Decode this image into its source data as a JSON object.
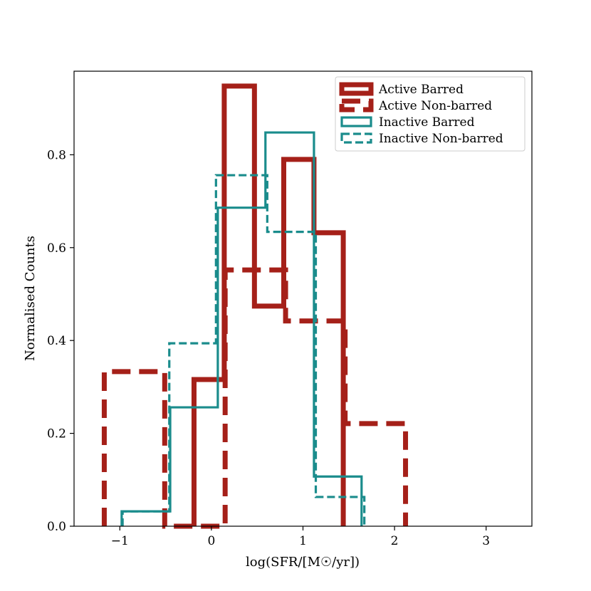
{
  "chart_data": {
    "type": "histogram",
    "title": "",
    "xlabel": "log(SFR/[M☉/yr])",
    "ylabel": "Normalised Counts",
    "xlim": [
      -1.5,
      3.5
    ],
    "ylim": [
      0.0,
      0.98
    ],
    "xticks": [
      -1,
      0,
      1,
      2,
      3
    ],
    "xtick_labels": [
      "−1",
      "0",
      "1",
      "2",
      "3"
    ],
    "yticks": [
      0.0,
      0.2,
      0.4,
      0.6,
      0.8
    ],
    "ytick_labels": [
      "0.0",
      "0.2",
      "0.4",
      "0.6",
      "0.8"
    ],
    "legend_position": "top-right",
    "series": [
      {
        "name": "Active Barred",
        "color": "#a52019",
        "linestyle": "solid",
        "linewidth": "thick",
        "bin_edges": [
          -0.19,
          0.14,
          0.47,
          0.79,
          1.12,
          1.44
        ],
        "values": [
          0.316,
          0.948,
          0.474,
          0.79,
          0.632
        ]
      },
      {
        "name": "Active Non-barred",
        "color": "#a52019",
        "linestyle": "dashed",
        "linewidth": "thick",
        "bin_edges": [
          -1.17,
          -0.51,
          0.15,
          0.81,
          1.46,
          2.12
        ],
        "values": [
          0.333,
          0.0,
          0.552,
          0.442,
          0.221
        ]
      },
      {
        "name": "Inactive Barred",
        "color": "#1a8c8c",
        "linestyle": "solid",
        "linewidth": "thin",
        "bin_edges": [
          -0.98,
          -0.45,
          0.07,
          0.59,
          1.12,
          1.64
        ],
        "values": [
          0.032,
          0.256,
          0.686,
          0.848,
          0.107
        ]
      },
      {
        "name": "Inactive Non-barred",
        "color": "#1a8c8c",
        "linestyle": "dashed",
        "linewidth": "thin",
        "bin_edges": [
          -0.97,
          -0.46,
          0.05,
          0.61,
          1.14,
          1.67
        ],
        "values": [
          0.032,
          0.394,
          0.756,
          0.634,
          0.063
        ]
      }
    ]
  }
}
